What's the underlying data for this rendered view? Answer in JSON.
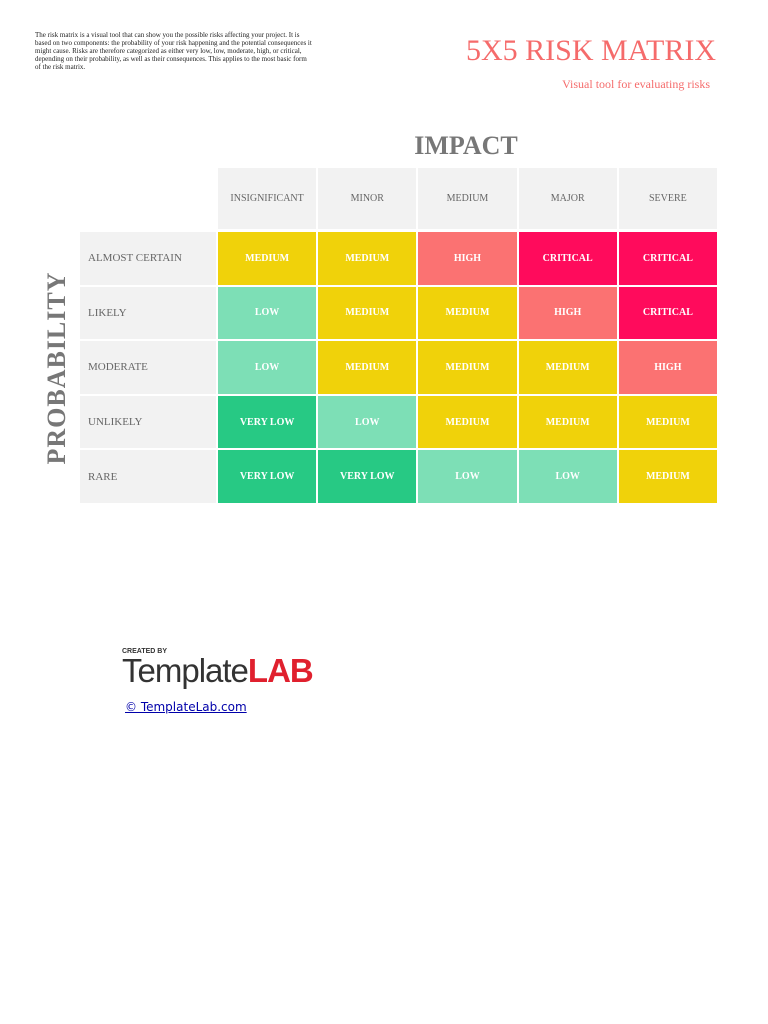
{
  "description": "The risk matrix is a visual tool that can show you the possible risks affecting your project. It is based on two components: the probability of your risk happening and the potential consequences it might cause. Risks are therefore categorized as either very low, low, moderate, high, or critical, depending on their probability, as well as their consequences. This applies to the most basic form of the risk matrix.",
  "header": {
    "title": "5X5 RISK MATRIX",
    "subtitle": "Visual tool for evaluating risks"
  },
  "matrix": {
    "column_axis": "IMPACT",
    "row_axis": "PROBABILITY",
    "columns": [
      "INSIGNIFICANT",
      "MINOR",
      "MEDIUM",
      "MAJOR",
      "SEVERE"
    ],
    "rows": [
      {
        "label": "ALMOST CERTAIN",
        "cells": [
          {
            "text": "MEDIUM",
            "color": "#f0d20a"
          },
          {
            "text": "MEDIUM",
            "color": "#f0d20a"
          },
          {
            "text": "HIGH",
            "color": "#fb7272"
          },
          {
            "text": "CRITICAL",
            "color": "#ff0b5c"
          },
          {
            "text": "CRITICAL",
            "color": "#ff0b5c"
          }
        ]
      },
      {
        "label": "LIKELY",
        "cells": [
          {
            "text": "LOW",
            "color": "#7ddfb6"
          },
          {
            "text": "MEDIUM",
            "color": "#f0d20a"
          },
          {
            "text": "MEDIUM",
            "color": "#f0d20a"
          },
          {
            "text": "HIGH",
            "color": "#fb7272"
          },
          {
            "text": "CRITICAL",
            "color": "#ff0b5c"
          }
        ]
      },
      {
        "label": "MODERATE",
        "cells": [
          {
            "text": "LOW",
            "color": "#7ddfb6"
          },
          {
            "text": "MEDIUM",
            "color": "#f0d20a"
          },
          {
            "text": "MEDIUM",
            "color": "#f0d20a"
          },
          {
            "text": "MEDIUM",
            "color": "#f0d20a"
          },
          {
            "text": "HIGH",
            "color": "#fb7272"
          }
        ]
      },
      {
        "label": "UNLIKELY",
        "cells": [
          {
            "text": "VERY LOW",
            "color": "#27c984"
          },
          {
            "text": "LOW",
            "color": "#7ddfb6"
          },
          {
            "text": "MEDIUM",
            "color": "#f0d20a"
          },
          {
            "text": "MEDIUM",
            "color": "#f0d20a"
          },
          {
            "text": "MEDIUM",
            "color": "#f0d20a"
          }
        ]
      },
      {
        "label": "RARE",
        "cells": [
          {
            "text": "VERY LOW",
            "color": "#27c984"
          },
          {
            "text": "VERY LOW",
            "color": "#27c984"
          },
          {
            "text": "LOW",
            "color": "#7ddfb6"
          },
          {
            "text": "LOW",
            "color": "#7ddfb6"
          },
          {
            "text": "MEDIUM",
            "color": "#f0d20a"
          }
        ]
      }
    ]
  },
  "logo": {
    "created_by": "CREATED BY",
    "template": "Template",
    "lab": "LAB",
    "link": "© TemplateLab.com"
  }
}
